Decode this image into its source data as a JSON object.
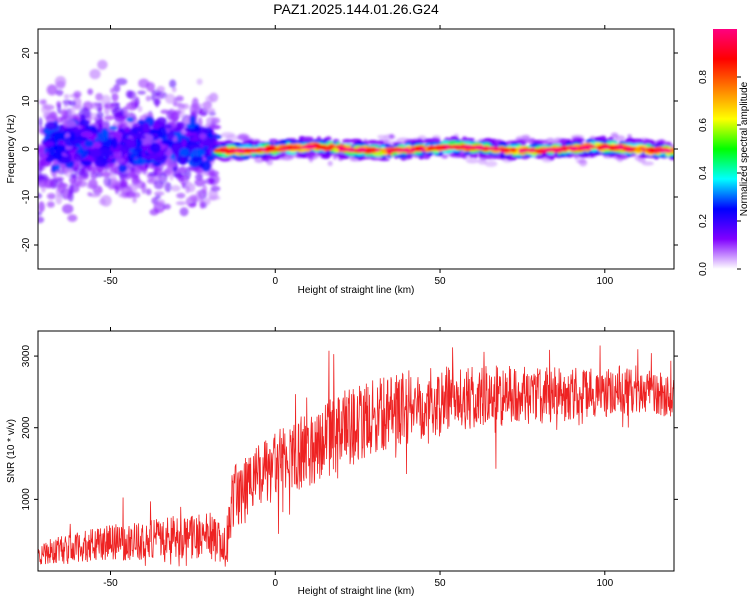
{
  "figure": {
    "title": "PAZ1.2025.144.01.26.G24"
  },
  "chart_data": [
    {
      "type": "heatmap",
      "title": "PAZ1.2025.144.01.26.G24",
      "xlabel": "Height of straight line (km)",
      "ylabel": "Frequency (Hz)",
      "xlim": [
        -72,
        121
      ],
      "ylim": [
        -25,
        25
      ],
      "xticks": [
        -50,
        0,
        50,
        100
      ],
      "yticks": [
        -20,
        -10,
        0,
        10,
        20
      ],
      "colorbar": {
        "label": "Normalized spectral amplitude",
        "range": [
          0,
          1
        ],
        "ticks": [
          0.0,
          0.2,
          0.4,
          0.6,
          0.8
        ],
        "tick_labels": [
          "0.0",
          "0.2",
          "0.4",
          "0.6",
          "0.8"
        ],
        "colormap": [
          "#ffffff",
          "#8000ff",
          "#0000ff",
          "#00ffff",
          "#00ff00",
          "#ffff00",
          "#ff8000",
          "#ff0000",
          "#ff0080"
        ]
      },
      "regions": [
        {
          "x_range": [
            -72,
            -18
          ],
          "freq_center": 0,
          "freq_spread": 20,
          "note": "scattered low-amplitude energy"
        },
        {
          "x_range": [
            -18,
            121
          ],
          "freq_center": 0,
          "freq_spread": 1.5,
          "note": "narrow carrier band, amplitude 0.8-1.0"
        }
      ]
    },
    {
      "type": "line",
      "xlabel": "Height of straight line (km)",
      "ylabel": "SNR (10 * v/v)",
      "xlim": [
        -72,
        121
      ],
      "ylim": [
        0,
        3350
      ],
      "xticks": [
        -50,
        0,
        50,
        100
      ],
      "yticks": [
        1000,
        2000,
        3000
      ],
      "color": "#ee2222",
      "envelope": [
        {
          "x": -72,
          "y": 250
        },
        {
          "x": -60,
          "y": 320
        },
        {
          "x": -50,
          "y": 400
        },
        {
          "x": -40,
          "y": 420
        },
        {
          "x": -30,
          "y": 480
        },
        {
          "x": -20,
          "y": 500
        },
        {
          "x": -15,
          "y": 300
        },
        {
          "x": -13,
          "y": 1000
        },
        {
          "x": -8,
          "y": 1200
        },
        {
          "x": 0,
          "y": 1450
        },
        {
          "x": 5,
          "y": 1600
        },
        {
          "x": 10,
          "y": 1700
        },
        {
          "x": 20,
          "y": 1950
        },
        {
          "x": 30,
          "y": 2150
        },
        {
          "x": 40,
          "y": 2300
        },
        {
          "x": 50,
          "y": 2380
        },
        {
          "x": 60,
          "y": 2400
        },
        {
          "x": 70,
          "y": 2450
        },
        {
          "x": 80,
          "y": 2450
        },
        {
          "x": 90,
          "y": 2480
        },
        {
          "x": 100,
          "y": 2480
        },
        {
          "x": 110,
          "y": 2500
        },
        {
          "x": 121,
          "y": 2450
        }
      ],
      "noise_amplitude": [
        {
          "x": -72,
          "y": 180
        },
        {
          "x": -15,
          "y": 350
        },
        {
          "x": -13,
          "y": 450
        },
        {
          "x": 20,
          "y": 550
        },
        {
          "x": 60,
          "y": 450
        },
        {
          "x": 121,
          "y": 300
        }
      ]
    }
  ]
}
